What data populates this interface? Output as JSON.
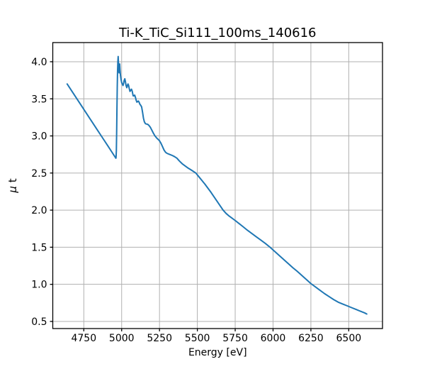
{
  "figure": {
    "background": "#ffffff"
  },
  "chart_data": {
    "type": "line",
    "title": "Ti-K_TiC_Si111_100ms_140616",
    "xlabel": "Energy [eV]",
    "ylabel": "μ t",
    "xlim": [
      4545,
      6723
    ],
    "ylim": [
      0.404,
      4.258
    ],
    "xticks": [
      4750,
      5000,
      5250,
      5500,
      5750,
      6000,
      6250,
      6500
    ],
    "yticks": [
      0.5,
      1.0,
      1.5,
      2.0,
      2.5,
      3.0,
      3.5,
      4.0
    ],
    "grid": true,
    "legend": "none",
    "line_color": "#1f77b4",
    "grid_color": "#b0b0b0",
    "spine_color": "#000000",
    "series": [
      {
        "name": "mu_t_absorption",
        "x": [
          4640,
          4680,
          4720,
          4760,
          4800,
          4840,
          4880,
          4910,
          4935,
          4950,
          4958,
          4962,
          4963,
          4965,
          4967,
          4969,
          4971,
          4973,
          4975,
          4977,
          4979,
          4981,
          4983,
          4985,
          4987,
          4989,
          4992,
          4996,
          5000,
          5004,
          5009,
          5013,
          5017,
          5021,
          5025,
          5029,
          5034,
          5038,
          5042,
          5046,
          5050,
          5055,
          5060,
          5065,
          5070,
          5076,
          5081,
          5086,
          5091,
          5096,
          5101,
          5106,
          5111,
          5116,
          5121,
          5127,
          5132,
          5138,
          5144,
          5150,
          5157,
          5165,
          5173,
          5181,
          5190,
          5200,
          5210,
          5220,
          5230,
          5240,
          5250,
          5260,
          5270,
          5280,
          5290,
          5300,
          5312,
          5324,
          5336,
          5350,
          5365,
          5380,
          5400,
          5420,
          5440,
          5460,
          5475,
          5490,
          5510,
          5530,
          5550,
          5570,
          5590,
          5610,
          5630,
          5650,
          5670,
          5690,
          5710,
          5730,
          5750,
          5775,
          5800,
          5830,
          5860,
          5890,
          5920,
          5950,
          5980,
          6010,
          6040,
          6070,
          6100,
          6130,
          6160,
          6190,
          6220,
          6250,
          6280,
          6310,
          6340,
          6370,
          6400,
          6430,
          6460,
          6490,
          6520,
          6550,
          6580,
          6605,
          6619
        ],
        "y": [
          3.7,
          3.576,
          3.452,
          3.327,
          3.203,
          3.079,
          2.955,
          2.862,
          2.784,
          2.737,
          2.712,
          2.7,
          2.71,
          2.8,
          3.05,
          3.38,
          3.67,
          3.88,
          4.0,
          4.07,
          3.98,
          3.89,
          3.85,
          3.93,
          3.97,
          3.9,
          3.82,
          3.76,
          3.72,
          3.7,
          3.68,
          3.71,
          3.75,
          3.77,
          3.73,
          3.68,
          3.65,
          3.68,
          3.7,
          3.68,
          3.64,
          3.6,
          3.615,
          3.63,
          3.6,
          3.54,
          3.54,
          3.55,
          3.52,
          3.48,
          3.455,
          3.465,
          3.47,
          3.45,
          3.425,
          3.41,
          3.39,
          3.32,
          3.24,
          3.19,
          3.165,
          3.16,
          3.155,
          3.14,
          3.115,
          3.075,
          3.035,
          3.0,
          2.975,
          2.955,
          2.935,
          2.9,
          2.855,
          2.81,
          2.78,
          2.765,
          2.755,
          2.745,
          2.735,
          2.72,
          2.7,
          2.665,
          2.625,
          2.595,
          2.565,
          2.54,
          2.52,
          2.5,
          2.45,
          2.4,
          2.35,
          2.295,
          2.24,
          2.18,
          2.12,
          2.06,
          2.0,
          1.955,
          1.92,
          1.89,
          1.86,
          1.82,
          1.78,
          1.73,
          1.685,
          1.64,
          1.595,
          1.55,
          1.5,
          1.445,
          1.39,
          1.335,
          1.28,
          1.225,
          1.175,
          1.12,
          1.065,
          1.01,
          0.965,
          0.92,
          0.875,
          0.835,
          0.795,
          0.76,
          0.735,
          0.71,
          0.685,
          0.66,
          0.635,
          0.615,
          0.6
        ]
      }
    ]
  }
}
